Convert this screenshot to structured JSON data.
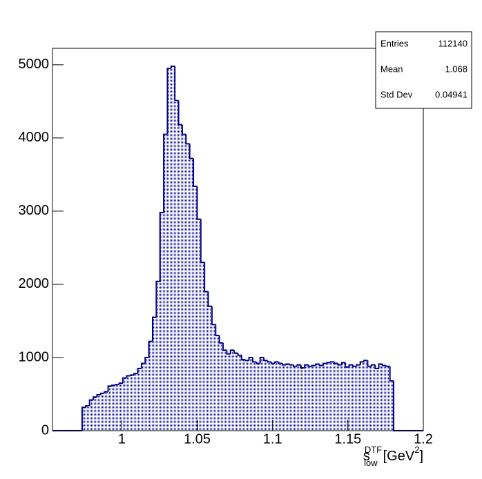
{
  "chart_data": {
    "type": "histogram",
    "x_label": {
      "base": "s",
      "sub": "low",
      "sup": "DTF",
      "unit": "[GeV",
      "unit_sup": "2",
      "close": "]"
    },
    "bins": [
      0.954,
      0.95646,
      0.95892,
      0.96138,
      0.96384,
      0.9663,
      0.96876,
      0.97122,
      0.97368,
      0.97614,
      0.9786,
      0.98106,
      0.98352,
      0.98598,
      0.98844,
      0.9909,
      0.99336,
      0.99582,
      0.99828,
      1.00074,
      1.0032,
      1.00566,
      1.00812,
      1.01058,
      1.01304,
      1.0155,
      1.01796,
      1.02042,
      1.02288,
      1.02534,
      1.0278,
      1.03026,
      1.03272,
      1.03518,
      1.03764,
      1.0401,
      1.04256,
      1.04502,
      1.04748,
      1.04994,
      1.0524,
      1.05486,
      1.05732,
      1.05978,
      1.06224,
      1.0647,
      1.06716,
      1.06962,
      1.07208,
      1.07454,
      1.077,
      1.07946,
      1.08192,
      1.08438,
      1.08684,
      1.0893,
      1.09176,
      1.09422,
      1.09668,
      1.09914,
      1.1016,
      1.10406,
      1.10652,
      1.10898,
      1.11144,
      1.1139,
      1.11636,
      1.11882,
      1.12128,
      1.12374,
      1.1262,
      1.12866,
      1.13112,
      1.13358,
      1.13604,
      1.1385,
      1.14096,
      1.14342,
      1.14588,
      1.14834,
      1.1508,
      1.15326,
      1.15572,
      1.15818,
      1.16064,
      1.1631,
      1.16556,
      1.16802,
      1.17048,
      1.17294,
      1.1754,
      1.17786,
      1.18032,
      1.18278,
      1.18524,
      1.1877,
      1.19016,
      1.19262,
      1.19508,
      1.19754,
      1.2
    ],
    "counts": [
      0,
      0,
      0,
      0,
      0,
      0,
      0,
      0,
      320,
      340,
      420,
      460,
      490,
      510,
      530,
      610,
      620,
      630,
      650,
      720,
      750,
      760,
      780,
      850,
      920,
      1000,
      1220,
      1550,
      2040,
      2980,
      4050,
      4950,
      4980,
      4510,
      4180,
      4050,
      3920,
      3720,
      3340,
      2890,
      2300,
      1900,
      1700,
      1450,
      1300,
      1200,
      1100,
      1050,
      1100,
      1060,
      1030,
      970,
      960,
      1000,
      940,
      920,
      1000,
      960,
      940,
      920,
      940,
      920,
      900,
      910,
      900,
      880,
      900,
      860,
      900,
      880,
      890,
      910,
      890,
      920,
      930,
      940,
      920,
      900,
      930,
      870,
      900,
      880,
      900,
      940,
      960,
      880,
      900,
      850,
      910,
      890,
      880,
      680,
      0,
      0,
      0,
      0,
      0,
      0,
      0,
      0
    ],
    "color": "#000080",
    "xlim": [
      0.954,
      1.2
    ],
    "xticks": [
      1,
      1.05,
      1.1,
      1.15,
      1.2
    ],
    "ylim": [
      0,
      5225
    ],
    "yticks": [
      0,
      1000,
      2000,
      3000,
      4000,
      5000
    ],
    "stats": [
      {
        "label": "Entries",
        "value": 112140
      },
      {
        "label": "Mean",
        "value": 1.068
      },
      {
        "label": "Std Dev",
        "value": 0.04941
      }
    ]
  }
}
